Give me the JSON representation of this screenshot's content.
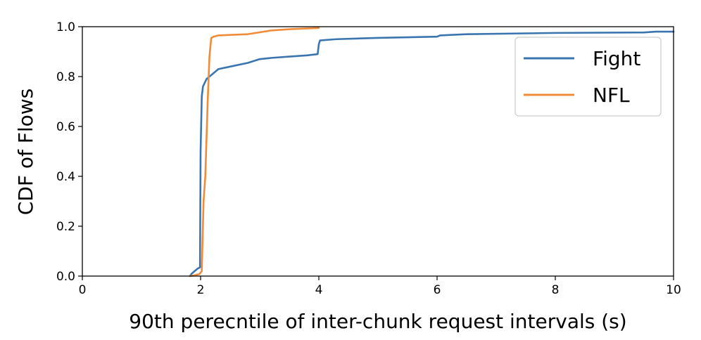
{
  "chart_data": {
    "type": "line",
    "title": "",
    "xlabel": "90th perecntile of inter-chunk request intervals (s)",
    "ylabel": "CDF of Flows",
    "xlim": [
      0,
      10
    ],
    "ylim": [
      0,
      1.0
    ],
    "xticks": [
      0,
      2,
      4,
      6,
      8,
      10
    ],
    "xtick_labels": [
      "0",
      "2",
      "4",
      "6",
      "8",
      "10"
    ],
    "yticks": [
      0.0,
      0.2,
      0.4,
      0.6,
      0.8,
      1.0
    ],
    "ytick_labels": [
      "0.0",
      "0.2",
      "0.4",
      "0.6",
      "0.8",
      "1.0"
    ],
    "grid": false,
    "legend_position": "top-right",
    "series": [
      {
        "name": "Fight",
        "color": "#3a75b0",
        "points": [
          [
            1.82,
            0.0
          ],
          [
            1.85,
            0.01
          ],
          [
            1.9,
            0.02
          ],
          [
            1.95,
            0.03
          ],
          [
            1.99,
            0.035
          ],
          [
            2.0,
            0.5
          ],
          [
            2.02,
            0.72
          ],
          [
            2.04,
            0.76
          ],
          [
            2.1,
            0.79
          ],
          [
            2.2,
            0.81
          ],
          [
            2.3,
            0.83
          ],
          [
            2.5,
            0.84
          ],
          [
            2.8,
            0.855
          ],
          [
            3.0,
            0.87
          ],
          [
            3.2,
            0.875
          ],
          [
            3.5,
            0.88
          ],
          [
            3.8,
            0.885
          ],
          [
            3.98,
            0.89
          ],
          [
            4.0,
            0.93
          ],
          [
            4.02,
            0.945
          ],
          [
            4.3,
            0.95
          ],
          [
            5.0,
            0.955
          ],
          [
            6.0,
            0.96
          ],
          [
            6.05,
            0.965
          ],
          [
            6.5,
            0.97
          ],
          [
            8.0,
            0.975
          ],
          [
            9.5,
            0.977
          ],
          [
            9.7,
            0.98
          ],
          [
            10.0,
            0.98
          ]
        ]
      },
      {
        "name": "NFL",
        "color": "#f08b3a",
        "points": [
          [
            1.82,
            0.0
          ],
          [
            1.9,
            0.003
          ],
          [
            1.98,
            0.008
          ],
          [
            2.02,
            0.02
          ],
          [
            2.05,
            0.3
          ],
          [
            2.08,
            0.4
          ],
          [
            2.12,
            0.7
          ],
          [
            2.15,
            0.88
          ],
          [
            2.18,
            0.955
          ],
          [
            2.22,
            0.96
          ],
          [
            2.3,
            0.965
          ],
          [
            2.5,
            0.967
          ],
          [
            2.8,
            0.97
          ],
          [
            3.2,
            0.985
          ],
          [
            3.5,
            0.99
          ],
          [
            4.0,
            0.995
          ]
        ]
      }
    ]
  }
}
